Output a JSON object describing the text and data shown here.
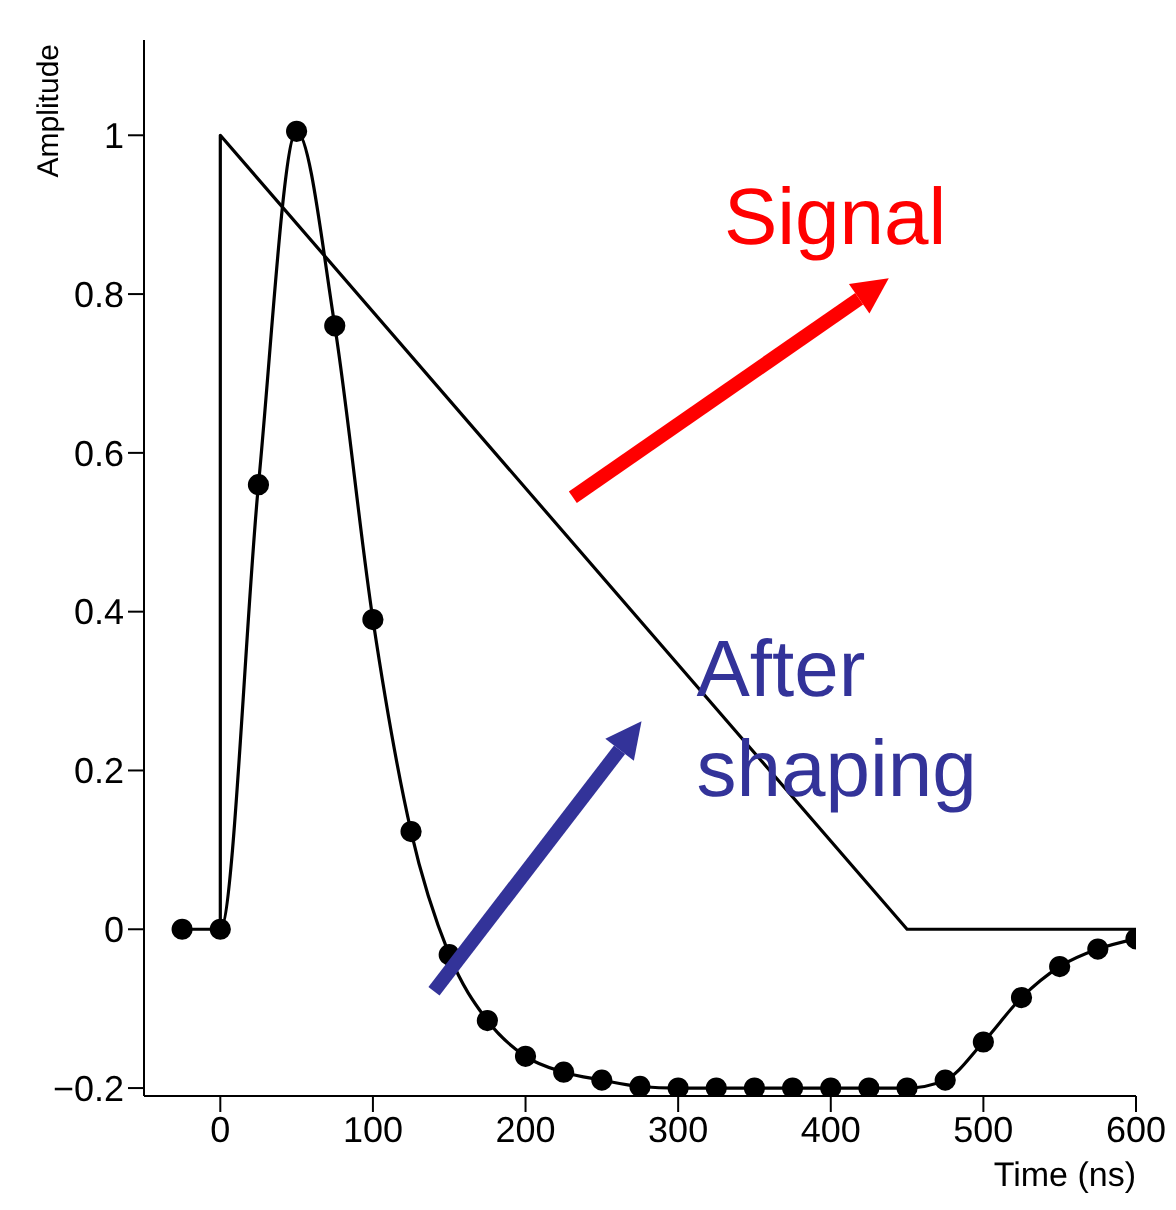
{
  "chart_data": {
    "type": "line",
    "xlabel": "Time (ns)",
    "ylabel": "Amplitude",
    "xlim": [
      -50,
      600
    ],
    "xticks": [
      0,
      100,
      200,
      300,
      400,
      500,
      600
    ],
    "ylim": [
      -0.21,
      1.12
    ],
    "yticks": [
      -0.2,
      0,
      0.2,
      0.4,
      0.6,
      0.8,
      1
    ],
    "series": [
      {
        "color": "#000000",
        "marker": "none",
        "x": [
          0,
          0,
          450,
          600
        ],
        "values": [
          0,
          1,
          0,
          0
        ]
      },
      {
        "color": "#000000",
        "marker": "circle",
        "x": [
          -25,
          0,
          25,
          50,
          75,
          100,
          125,
          150,
          175,
          200,
          225,
          250,
          275,
          300,
          325,
          350,
          375,
          400,
          425,
          450,
          475,
          500,
          525,
          550,
          575,
          600
        ],
        "values": [
          0,
          0,
          0.56,
          1.005,
          0.76,
          0.39,
          0.123,
          -0.032,
          -0.115,
          -0.16,
          -0.18,
          -0.19,
          -0.198,
          -0.2,
          -0.2,
          -0.2,
          -0.2,
          -0.2,
          -0.2,
          -0.2,
          -0.19,
          -0.142,
          -0.086,
          -0.047,
          -0.025,
          -0.012
        ]
      }
    ],
    "annotations": [
      "Signal",
      "After shaping"
    ]
  }
}
